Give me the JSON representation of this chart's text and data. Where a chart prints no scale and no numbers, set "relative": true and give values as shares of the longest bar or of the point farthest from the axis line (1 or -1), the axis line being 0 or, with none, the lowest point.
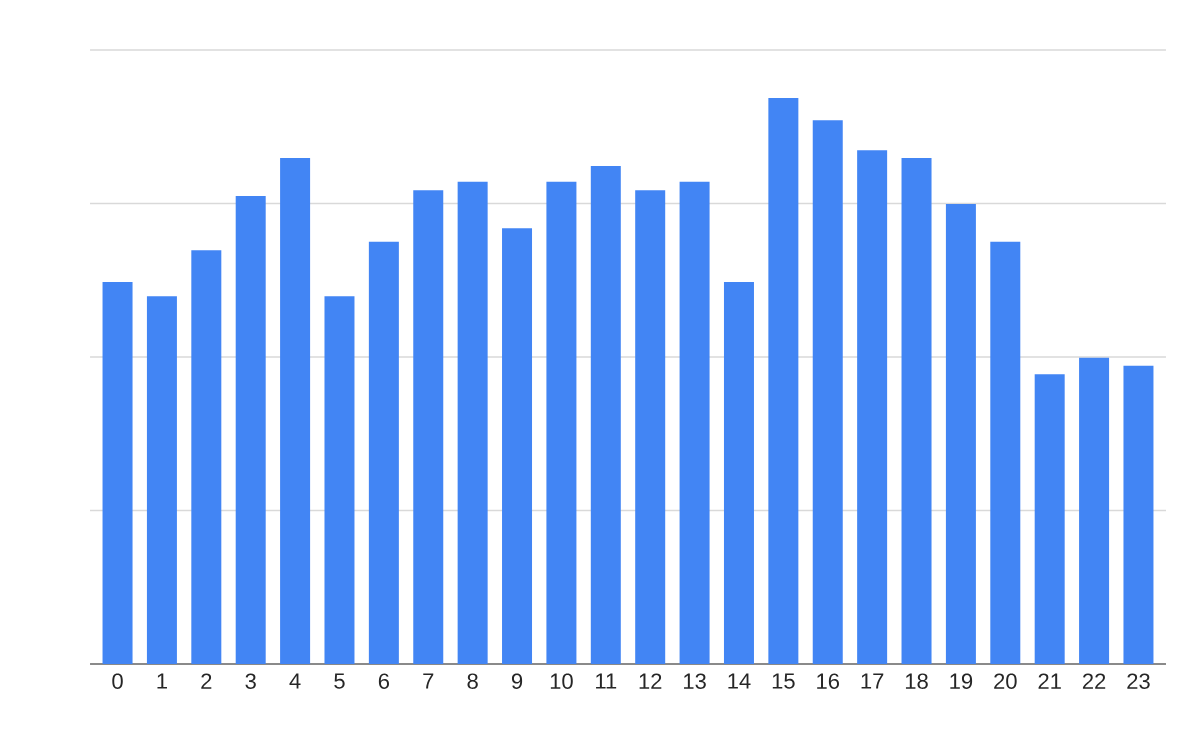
{
  "chart_data": {
    "type": "bar",
    "relative": true,
    "grid": "y",
    "color": "#4285f4",
    "categories": [
      "0",
      "1",
      "2",
      "3",
      "4",
      "5",
      "6",
      "7",
      "8",
      "9",
      "10",
      "11",
      "12",
      "13",
      "14",
      "15",
      "16",
      "17",
      "18",
      "19",
      "20",
      "21",
      "22",
      "23"
    ],
    "values": [
      0.675,
      0.65,
      0.731,
      0.827,
      0.894,
      0.65,
      0.746,
      0.837,
      0.852,
      0.77,
      0.852,
      0.88,
      0.837,
      0.852,
      0.675,
      1,
      0.961,
      0.908,
      0.894,
      0.813,
      0.746,
      0.512,
      0.541,
      0.527
    ]
  }
}
